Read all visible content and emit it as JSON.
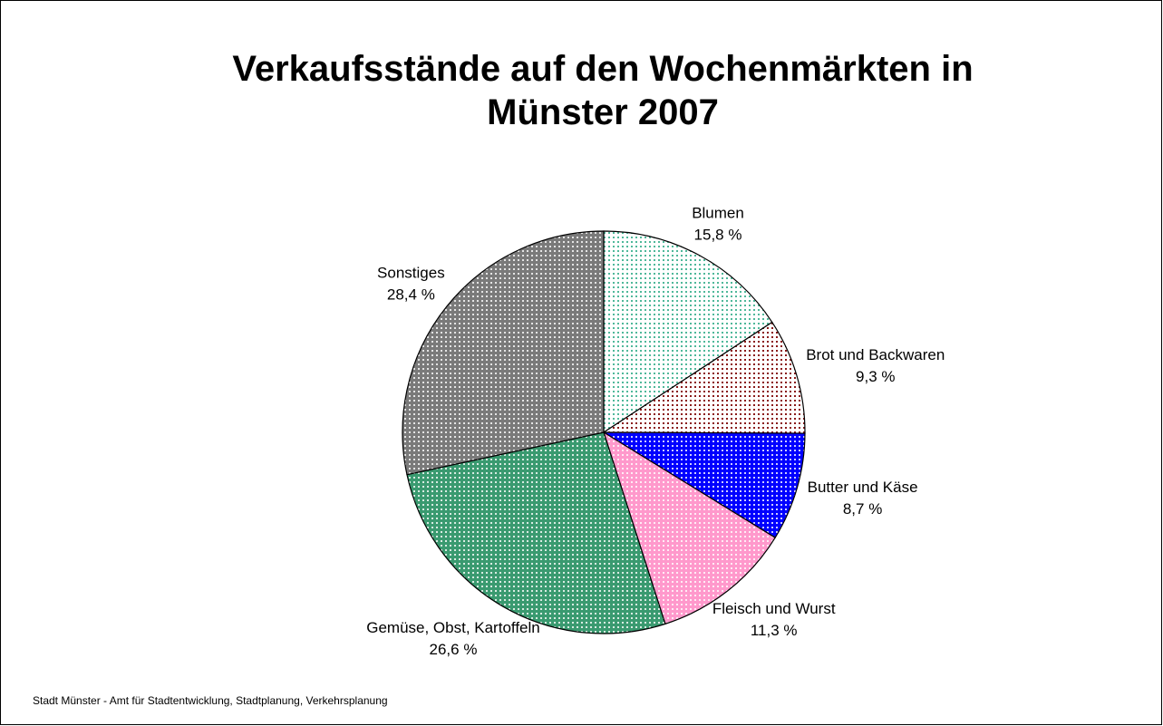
{
  "chart_data": {
    "type": "pie",
    "title": "Verkaufsstände auf den Wochenmärkten in Münster 2007",
    "categories": [
      "Blumen",
      "Brot und Backwaren",
      "Butter und Käse",
      "Fleisch und Wurst",
      "Gemüse, Obst, Kartoffeln",
      "Sonstiges"
    ],
    "values": [
      15.8,
      9.3,
      8.7,
      11.3,
      26.6,
      28.4
    ],
    "value_labels": [
      "15,8 %",
      "9,3 %",
      "8,7 %",
      "11,3 %",
      "26,6 %",
      "28,4 %"
    ],
    "colors": [
      "#4fb89a",
      "#8b1a1a",
      "#0000ff",
      "#ff99cc",
      "#3a9a70",
      "#7a7a7a"
    ],
    "source": "Stadt Münster - Amt für Stadtentwicklung, Stadtplanung, Verkehrsplanung"
  }
}
